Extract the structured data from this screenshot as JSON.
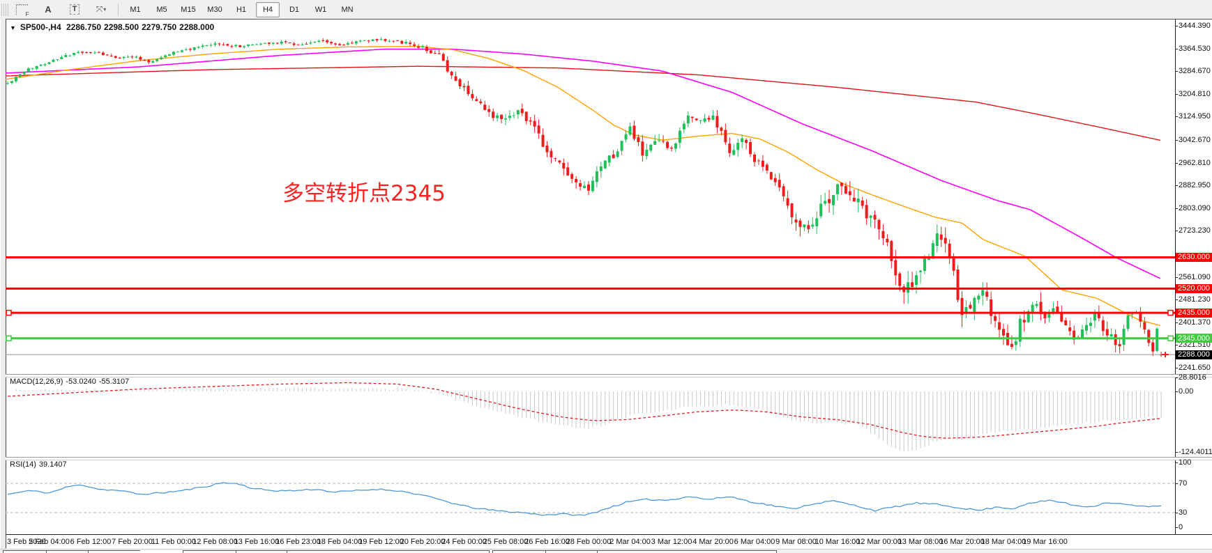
{
  "toolbar": {
    "tools": [
      {
        "name": "period-separators-tool",
        "glyph": "F"
      },
      {
        "name": "font-tool",
        "glyph": "A"
      },
      {
        "name": "text-label-tool",
        "glyph": "T"
      },
      {
        "name": "arrow-objects-tool",
        "glyph": "⤧",
        "dropdown": "▾"
      }
    ],
    "timeframes": [
      "M1",
      "M5",
      "M15",
      "M30",
      "H1",
      "H4",
      "D1",
      "W1",
      "MN"
    ],
    "active_timeframe": "H4"
  },
  "chart": {
    "symbol_title": "SP500-,H4",
    "ohlc": {
      "open": "2286.750",
      "high": "2298.500",
      "low": "2279.750",
      "close": "2288.000"
    },
    "annotation": {
      "text": "多空转折点2345"
    },
    "y_ticks": [
      "3444.390",
      "3364.530",
      "3284.670",
      "3204.810",
      "3124.950",
      "3042.670",
      "2962.810",
      "2882.950",
      "2803.090",
      "2723.230",
      "2561.090",
      "2481.230",
      "2401.370",
      "2321.510",
      "2241.650"
    ],
    "x_labels": [
      "3 Feb 2020",
      "5 Feb 04:00",
      "6 Feb 12:00",
      "7 Feb 20:00",
      "11 Feb 00:00",
      "12 Feb 08:00",
      "13 Feb 16:00",
      "16 Feb 23:00",
      "18 Feb 04:00",
      "19 Feb 12:00",
      "20 Feb 20:00",
      "24 Feb 00:00",
      "25 Feb 08:00",
      "26 Feb 16:00",
      "28 Feb 00:00",
      "2 Mar 04:00",
      "3 Mar 12:00",
      "4 Mar 20:00",
      "6 Mar 04:00",
      "9 Mar 08:00",
      "10 Mar 16:00",
      "12 Mar 00:00",
      "13 Mar 08:00",
      "16 Mar 20:00",
      "18 Mar 04:00",
      "19 Mar 16:00"
    ],
    "hlines": [
      {
        "label": "2630.000",
        "value": 2630.0,
        "color": "#ff0000",
        "width": 3,
        "handles": []
      },
      {
        "label": "2520.000",
        "value": 2520.0,
        "color": "#ff0000",
        "width": 3,
        "handles": []
      },
      {
        "label": "2435.000",
        "value": 2435.0,
        "color": "#ff0000",
        "width": 3,
        "handles": [
          "left",
          "right"
        ]
      },
      {
        "label": "2345.000",
        "value": 2345.0,
        "color": "#3ecb3e",
        "width": 3,
        "handles": [
          "left",
          "right"
        ]
      }
    ],
    "bid": {
      "label": "2288.000",
      "value": 2288.0,
      "line_color": "#8a939b",
      "label_bg": "#000000"
    }
  },
  "indicators": {
    "macd": {
      "label": "MACD(12,26,9)",
      "main_value": "-53.0240",
      "signal_value": "-55.3107",
      "ticks": [
        {
          "label": "28.8016",
          "value": 28.8016
        },
        {
          "label": "0.00",
          "value": 0.0
        },
        {
          "label": "-124.4011",
          "value": -124.4011
        }
      ]
    },
    "rsi": {
      "label": "RSI(14)",
      "value": "39.1407",
      "ticks": [
        {
          "label": "100",
          "value": 100
        },
        {
          "label": "70",
          "value": 70
        },
        {
          "label": "30",
          "value": 30
        },
        {
          "label": "0",
          "value": 0
        }
      ],
      "levels": [
        70,
        30
      ]
    }
  },
  "colors": {
    "bull": "#1fc05c",
    "bear": "#ee1d1d",
    "ma_fast_orange": "#ffa200",
    "ma_mid_magenta": "#ff00ff",
    "ma_slow_red": "#e01414",
    "macd_hist": "#c8c8c8",
    "macd_signal": "#e02020",
    "rsi_line": "#4a97e0",
    "annotation": "#ff2222",
    "hline_red": "#ff0000",
    "hline_green": "#3ecb3e",
    "bid_flag_bg": "#000000",
    "rsi_level_dash": "#b4b4b4"
  },
  "chart_data": {
    "type": "candlestick",
    "symbol": "SP500-",
    "timeframe": "H4",
    "bars": 279,
    "bars_per_x_label": 10,
    "price_axis": {
      "top_tick": 3444.39,
      "bottom_tick": 2241.65
    },
    "last_bar_ohlc": [
      2286.75,
      2298.5,
      2279.75,
      2288.0
    ],
    "close_path": [
      [
        0,
        3242
      ],
      [
        5,
        3292
      ],
      [
        10,
        3318
      ],
      [
        16,
        3348
      ],
      [
        21,
        3352
      ],
      [
        26,
        3330
      ],
      [
        30,
        3338
      ],
      [
        34,
        3318
      ],
      [
        36,
        3328
      ],
      [
        40,
        3352
      ],
      [
        46,
        3368
      ],
      [
        50,
        3380
      ],
      [
        56,
        3372
      ],
      [
        60,
        3380
      ],
      [
        66,
        3388
      ],
      [
        70,
        3378
      ],
      [
        76,
        3392
      ],
      [
        80,
        3375
      ],
      [
        84,
        3390
      ],
      [
        90,
        3396
      ],
      [
        94,
        3390
      ],
      [
        100,
        3368
      ],
      [
        104,
        3337
      ],
      [
        107,
        3262
      ],
      [
        110,
        3228
      ],
      [
        113,
        3180
      ],
      [
        116,
        3132
      ],
      [
        120,
        3126
      ],
      [
        123,
        3148
      ],
      [
        126,
        3108
      ],
      [
        130,
        3000
      ],
      [
        133,
        2958
      ],
      [
        137,
        2882
      ],
      [
        140,
        2860
      ],
      [
        143,
        2948
      ],
      [
        147,
        3005
      ],
      [
        150,
        3088
      ],
      [
        153,
        2992
      ],
      [
        157,
        3038
      ],
      [
        160,
        3002
      ],
      [
        164,
        3130
      ],
      [
        167,
        3108
      ],
      [
        170,
        3126
      ],
      [
        174,
        3000
      ],
      [
        177,
        3048
      ],
      [
        180,
        2970
      ],
      [
        183,
        2938
      ],
      [
        186,
        2880
      ],
      [
        188,
        2820
      ],
      [
        190,
        2750
      ],
      [
        193,
        2746
      ],
      [
        196,
        2800
      ],
      [
        200,
        2880
      ],
      [
        203,
        2858
      ],
      [
        206,
        2800
      ],
      [
        210,
        2740
      ],
      [
        212,
        2680
      ],
      [
        214,
        2560
      ],
      [
        216,
        2500
      ],
      [
        218,
        2545
      ],
      [
        220,
        2590
      ],
      [
        222,
        2640
      ],
      [
        224,
        2700
      ],
      [
        226,
        2688
      ],
      [
        228,
        2560
      ],
      [
        230,
        2420
      ],
      [
        232,
        2455
      ],
      [
        234,
        2510
      ],
      [
        236,
        2478
      ],
      [
        238,
        2390
      ],
      [
        240,
        2350
      ],
      [
        242,
        2300
      ],
      [
        244,
        2400
      ],
      [
        246,
        2438
      ],
      [
        248,
        2460
      ],
      [
        250,
        2420
      ],
      [
        252,
        2452
      ],
      [
        254,
        2410
      ],
      [
        256,
        2370
      ],
      [
        258,
        2330
      ],
      [
        260,
        2400
      ],
      [
        262,
        2425
      ],
      [
        264,
        2380
      ],
      [
        266,
        2345
      ],
      [
        268,
        2310
      ],
      [
        270,
        2430
      ],
      [
        272,
        2445
      ],
      [
        274,
        2380
      ],
      [
        276,
        2290
      ],
      [
        277,
        2375
      ],
      [
        278,
        2288
      ]
    ],
    "volatility": [
      [
        0,
        16
      ],
      [
        90,
        16
      ],
      [
        100,
        26
      ],
      [
        107,
        44
      ],
      [
        130,
        50
      ],
      [
        140,
        60
      ],
      [
        160,
        48
      ],
      [
        180,
        55
      ],
      [
        190,
        75
      ],
      [
        210,
        85
      ],
      [
        216,
        95
      ],
      [
        230,
        95
      ],
      [
        240,
        80
      ],
      [
        260,
        70
      ],
      [
        278,
        40
      ]
    ],
    "ma_paths": {
      "slow_red": [
        [
          8,
          3268
        ],
        [
          300,
          3290
        ],
        [
          600,
          3302
        ],
        [
          800,
          3296
        ],
        [
          1000,
          3272
        ],
        [
          1200,
          3228
        ],
        [
          1400,
          3176
        ],
        [
          1490,
          3132
        ],
        [
          1580,
          3086
        ],
        [
          1667,
          3040
        ]
      ],
      "mid_magenta": [
        [
          8,
          3278
        ],
        [
          200,
          3300
        ],
        [
          400,
          3340
        ],
        [
          550,
          3362
        ],
        [
          650,
          3362
        ],
        [
          750,
          3345
        ],
        [
          850,
          3320
        ],
        [
          950,
          3285
        ],
        [
          1050,
          3210
        ],
        [
          1150,
          3100
        ],
        [
          1250,
          3005
        ],
        [
          1350,
          2900
        ],
        [
          1430,
          2830
        ],
        [
          1477,
          2798
        ],
        [
          1550,
          2700
        ],
        [
          1600,
          2630
        ],
        [
          1667,
          2552
        ]
      ],
      "fast_orange": [
        [
          8,
          3256
        ],
        [
          100,
          3290
        ],
        [
          200,
          3322
        ],
        [
          300,
          3345
        ],
        [
          400,
          3362
        ],
        [
          500,
          3370
        ],
        [
          600,
          3372
        ],
        [
          650,
          3360
        ],
        [
          700,
          3330
        ],
        [
          750,
          3288
        ],
        [
          800,
          3228
        ],
        [
          850,
          3148
        ],
        [
          880,
          3095
        ],
        [
          910,
          3060
        ],
        [
          950,
          3042
        ],
        [
          1000,
          3056
        ],
        [
          1050,
          3066
        ],
        [
          1090,
          3046
        ],
        [
          1130,
          3000
        ],
        [
          1170,
          2940
        ],
        [
          1210,
          2888
        ],
        [
          1250,
          2850
        ],
        [
          1300,
          2806
        ],
        [
          1340,
          2772
        ],
        [
          1380,
          2750
        ],
        [
          1410,
          2692
        ],
        [
          1470,
          2634
        ],
        [
          1523,
          2515
        ],
        [
          1573,
          2486
        ],
        [
          1633,
          2410
        ],
        [
          1667,
          2388
        ]
      ]
    },
    "macd": {
      "histogram": [
        [
          0,
          2
        ],
        [
          15,
          4
        ],
        [
          32,
          3
        ],
        [
          49,
          5
        ],
        [
          66,
          6
        ],
        [
          82,
          5
        ],
        [
          94,
          6
        ],
        [
          99,
          2
        ],
        [
          104,
          -6
        ],
        [
          109,
          -18
        ],
        [
          116,
          -38
        ],
        [
          123,
          -52
        ],
        [
          129,
          -62
        ],
        [
          136,
          -72
        ],
        [
          141,
          -75
        ],
        [
          146,
          -62
        ],
        [
          151,
          -48
        ],
        [
          158,
          -40
        ],
        [
          164,
          -32
        ],
        [
          170,
          -30
        ],
        [
          175,
          -28
        ],
        [
          180,
          -35
        ],
        [
          185,
          -48
        ],
        [
          190,
          -60
        ],
        [
          195,
          -65
        ],
        [
          200,
          -62
        ],
        [
          205,
          -70
        ],
        [
          210,
          -95
        ],
        [
          213,
          -115
        ],
        [
          216,
          -124.4
        ],
        [
          220,
          -118
        ],
        [
          223,
          -105
        ],
        [
          226,
          -98
        ],
        [
          230,
          -96
        ],
        [
          233,
          -92
        ],
        [
          237,
          -85
        ],
        [
          240,
          -82
        ],
        [
          243,
          -80
        ],
        [
          247,
          -78
        ],
        [
          250,
          -72
        ],
        [
          255,
          -68
        ],
        [
          260,
          -65
        ],
        [
          265,
          -60
        ],
        [
          270,
          -57
        ],
        [
          274,
          -54
        ],
        [
          278,
          -53.02
        ]
      ],
      "signal": [
        [
          0,
          -10
        ],
        [
          32,
          5
        ],
        [
          66,
          15
        ],
        [
          82,
          18
        ],
        [
          94,
          15
        ],
        [
          103,
          5
        ],
        [
          113,
          -15
        ],
        [
          123,
          -35
        ],
        [
          133,
          -52
        ],
        [
          141,
          -60
        ],
        [
          149,
          -58
        ],
        [
          158,
          -50
        ],
        [
          166,
          -42
        ],
        [
          175,
          -38
        ],
        [
          183,
          -42
        ],
        [
          191,
          -52
        ],
        [
          200,
          -58
        ],
        [
          208,
          -68
        ],
        [
          216,
          -85
        ],
        [
          221,
          -93
        ],
        [
          226,
          -96
        ],
        [
          231,
          -95
        ],
        [
          237,
          -92
        ],
        [
          242,
          -88
        ],
        [
          247,
          -84
        ],
        [
          252,
          -80
        ],
        [
          257,
          -76
        ],
        [
          262,
          -72
        ],
        [
          267,
          -66
        ],
        [
          272,
          -61
        ],
        [
          278,
          -55.31
        ]
      ]
    },
    "rsi_path": [
      [
        0,
        55
      ],
      [
        5,
        60
      ],
      [
        10,
        57
      ],
      [
        15,
        66
      ],
      [
        18,
        68
      ],
      [
        22,
        62
      ],
      [
        27,
        60
      ],
      [
        32,
        55
      ],
      [
        37,
        57
      ],
      [
        42,
        60
      ],
      [
        47,
        65
      ],
      [
        52,
        71
      ],
      [
        56,
        69
      ],
      [
        59,
        63
      ],
      [
        64,
        60
      ],
      [
        69,
        60
      ],
      [
        74,
        62
      ],
      [
        79,
        58
      ],
      [
        84,
        60
      ],
      [
        89,
        62
      ],
      [
        94,
        60
      ],
      [
        99,
        55
      ],
      [
        104,
        48
      ],
      [
        109,
        40
      ],
      [
        114,
        35
      ],
      [
        119,
        32
      ],
      [
        124,
        30
      ],
      [
        129,
        27
      ],
      [
        134,
        28
      ],
      [
        139,
        26
      ],
      [
        144,
        35
      ],
      [
        149,
        44
      ],
      [
        154,
        48
      ],
      [
        159,
        47
      ],
      [
        164,
        52
      ],
      [
        169,
        48
      ],
      [
        174,
        52
      ],
      [
        179,
        45
      ],
      [
        184,
        40
      ],
      [
        189,
        35
      ],
      [
        194,
        42
      ],
      [
        199,
        46
      ],
      [
        204,
        40
      ],
      [
        209,
        33
      ],
      [
        214,
        38
      ],
      [
        219,
        43
      ],
      [
        224,
        41
      ],
      [
        229,
        37
      ],
      [
        234,
        33
      ],
      [
        239,
        38
      ],
      [
        242,
        35
      ],
      [
        245,
        41
      ],
      [
        248,
        44
      ],
      [
        251,
        47
      ],
      [
        254,
        44
      ],
      [
        257,
        40
      ],
      [
        261,
        38
      ],
      [
        265,
        44
      ],
      [
        268,
        42
      ],
      [
        271,
        40
      ],
      [
        274,
        38
      ],
      [
        278,
        39.14
      ]
    ]
  }
}
